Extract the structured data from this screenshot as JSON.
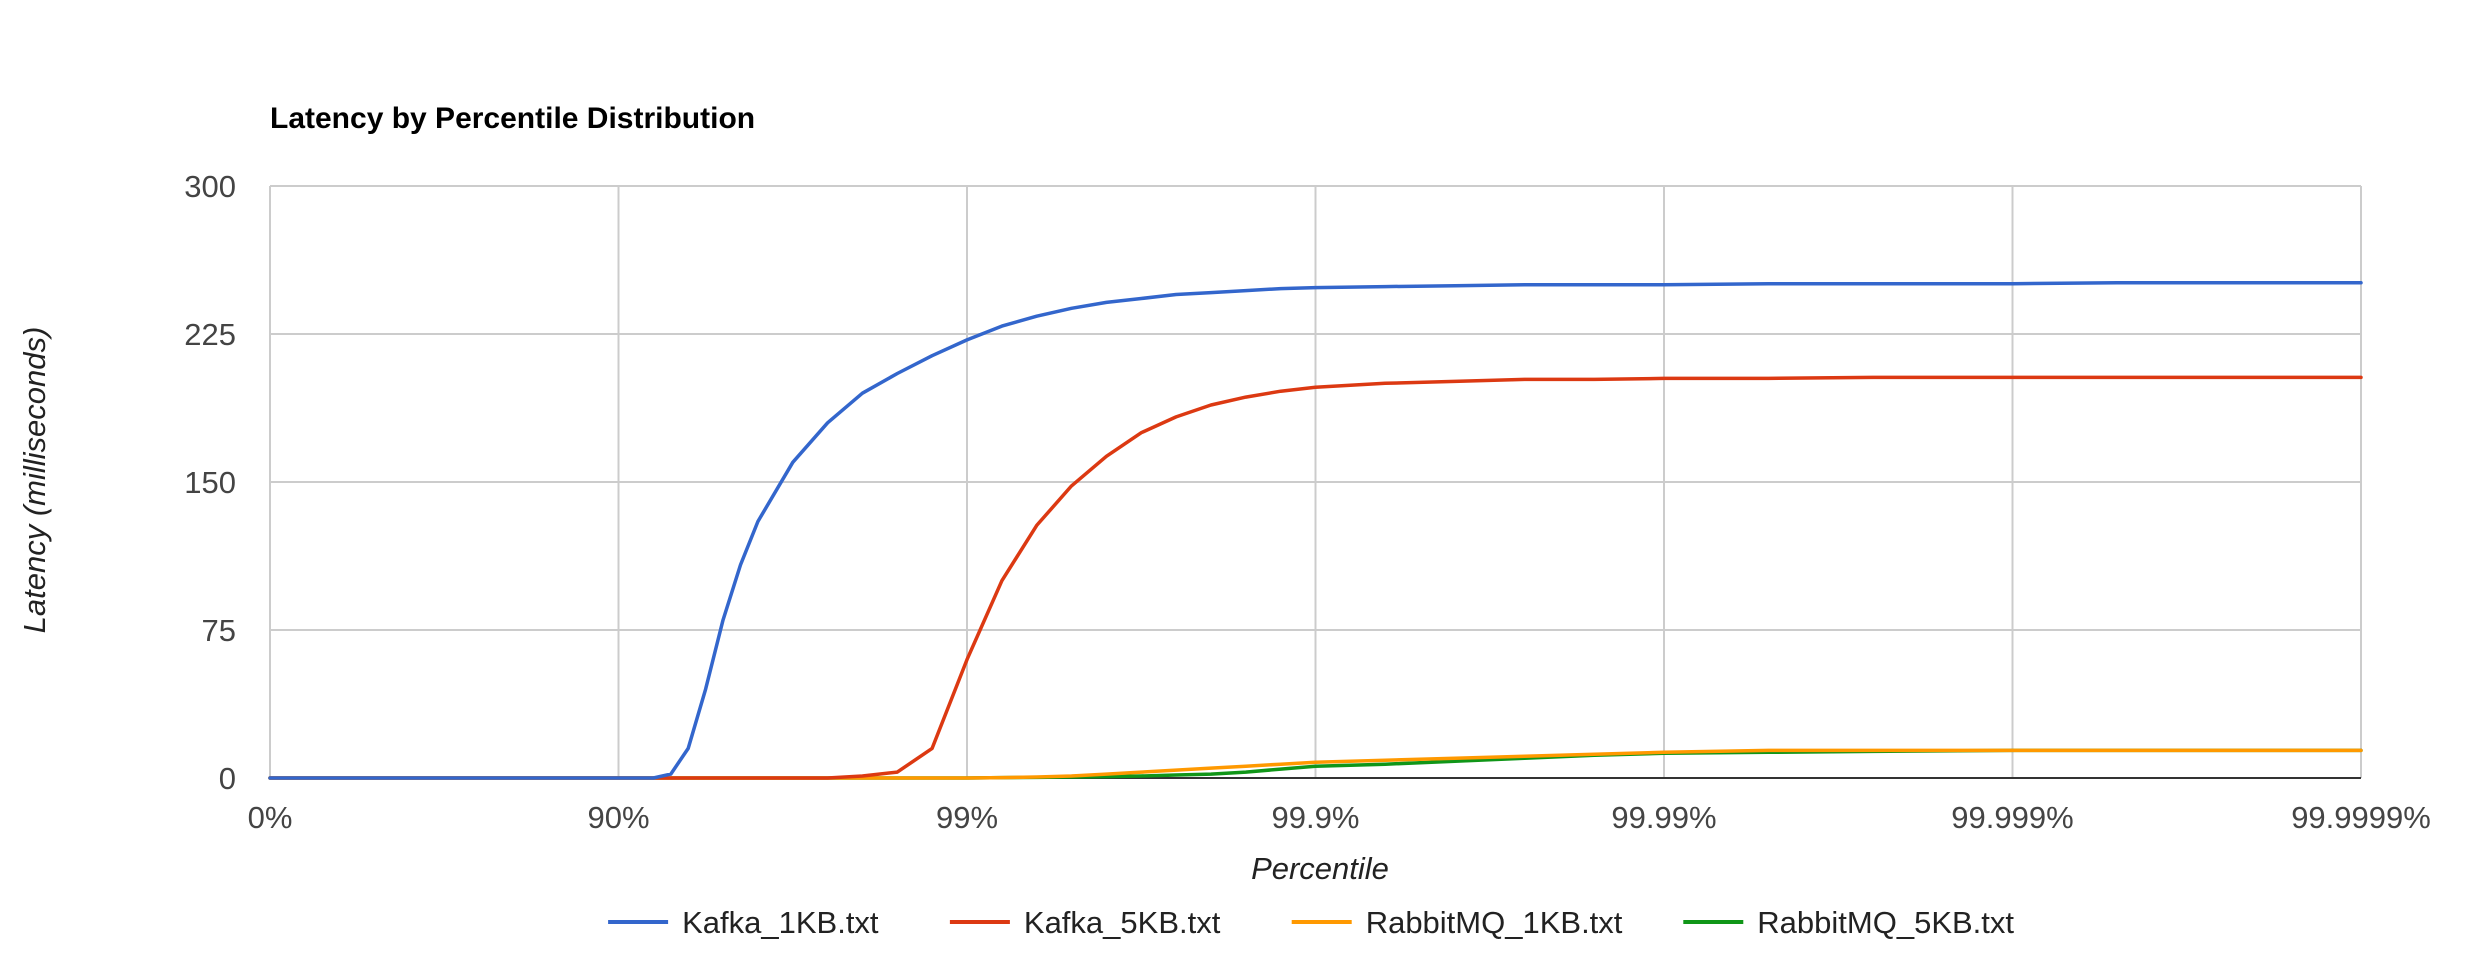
{
  "chart_data": {
    "type": "line",
    "title": "Latency by Percentile Distribution",
    "xlabel": "Percentile",
    "ylabel": "Latency (milliseconds)",
    "x_scale": "log-inverse (1 / (1 - p))",
    "x_ticks": [
      "0%",
      "90%",
      "99%",
      "99.9%",
      "99.99%",
      "99.999%",
      "99.9999%"
    ],
    "y_ticks": [
      "0",
      "75",
      "150",
      "225",
      "300"
    ],
    "ylim": [
      0,
      300
    ],
    "xlim_decades": [
      0,
      6
    ],
    "grid": true,
    "legend_position": "bottom",
    "x": [
      0,
      0.5,
      1,
      1.1,
      1.15,
      1.2,
      1.25,
      1.3,
      1.35,
      1.4,
      1.5,
      1.6,
      1.7,
      1.8,
      1.9,
      2.0,
      2.1,
      2.2,
      2.3,
      2.4,
      2.5,
      2.6,
      2.7,
      2.8,
      2.9,
      3.0,
      3.2,
      3.4,
      3.6,
      3.8,
      4.0,
      4.3,
      4.6,
      5.0,
      5.3,
      5.6,
      6.0
    ],
    "series": [
      {
        "name": "Kafka_1KB.txt",
        "color": "#3366cc",
        "values": [
          0,
          0,
          0,
          0,
          2,
          15,
          45,
          80,
          108,
          130,
          160,
          180,
          195,
          205,
          214,
          222,
          229,
          234,
          238,
          241,
          243,
          245,
          246,
          247,
          248,
          248.5,
          249,
          249.5,
          250,
          250,
          250,
          250.5,
          250.5,
          250.5,
          251,
          251,
          251
        ]
      },
      {
        "name": "Kafka_5KB.txt",
        "color": "#dc3912",
        "values": [
          0,
          0,
          0,
          0,
          0,
          0,
          0,
          0,
          0,
          0,
          0,
          0,
          1,
          3,
          15,
          60,
          100,
          128,
          148,
          163,
          175,
          183,
          189,
          193,
          196,
          198,
          200,
          201,
          202,
          202,
          202.5,
          202.5,
          203,
          203,
          203,
          203,
          203
        ]
      },
      {
        "name": "RabbitMQ_1KB.txt",
        "color": "#ff9900",
        "values": [
          0,
          0,
          0,
          0,
          0,
          0,
          0,
          0,
          0,
          0,
          0,
          0,
          0,
          0,
          0,
          0,
          0.2,
          0.5,
          1,
          2,
          3,
          4,
          5,
          6,
          7,
          8,
          9,
          10,
          11,
          12,
          13,
          14,
          14,
          14,
          14,
          14,
          14
        ]
      },
      {
        "name": "RabbitMQ_5KB.txt",
        "color": "#109618",
        "values": [
          0,
          0,
          0,
          0,
          0,
          0,
          0,
          0,
          0,
          0,
          0,
          0,
          0,
          0,
          0,
          0,
          0.2,
          0.3,
          0.5,
          0.7,
          1,
          1.5,
          2,
          3,
          4.5,
          6,
          7,
          8.5,
          10,
          11.5,
          12.5,
          13,
          13.5,
          14,
          14,
          14,
          14
        ]
      }
    ]
  }
}
